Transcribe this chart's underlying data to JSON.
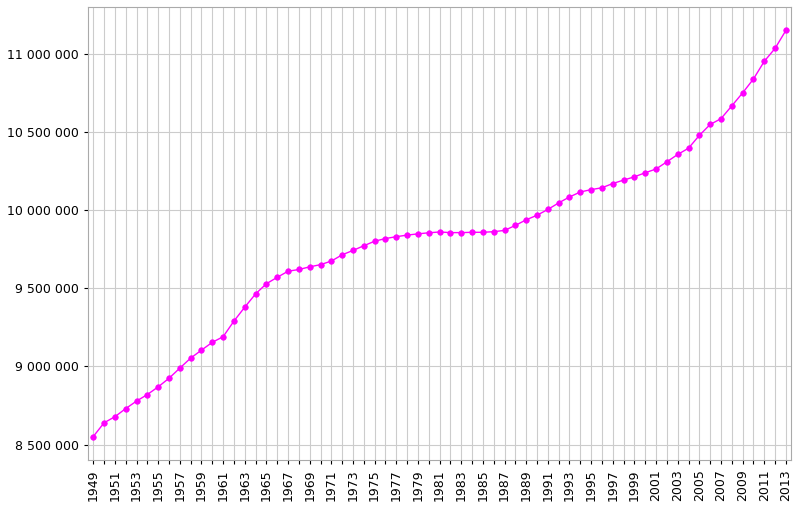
{
  "years": [
    1949,
    1950,
    1951,
    1952,
    1953,
    1954,
    1955,
    1956,
    1957,
    1958,
    1959,
    1960,
    1961,
    1962,
    1963,
    1964,
    1965,
    1966,
    1967,
    1968,
    1969,
    1970,
    1971,
    1972,
    1973,
    1974,
    1975,
    1976,
    1977,
    1978,
    1979,
    1980,
    1981,
    1982,
    1983,
    1984,
    1985,
    1986,
    1987,
    1988,
    1989,
    1990,
    1991,
    1992,
    1993,
    1994,
    1995,
    1996,
    1997,
    1998,
    1999,
    2000,
    2001,
    2002,
    2003,
    2004,
    2005,
    2006,
    2007,
    2008,
    2009,
    2010,
    2011,
    2012,
    2013
  ],
  "population": [
    8551000,
    8639000,
    8678000,
    8730000,
    8778000,
    8820000,
    8869000,
    8924000,
    8989000,
    9053000,
    9104000,
    9154000,
    9190000,
    9290000,
    9379000,
    9464000,
    9529000,
    9570000,
    9609000,
    9620000,
    9637000,
    9651000,
    9674000,
    9714000,
    9742000,
    9772000,
    9801000,
    9818000,
    9830000,
    9840000,
    9848000,
    9855000,
    9860000,
    9856000,
    9856000,
    9858000,
    9858000,
    9862000,
    9870000,
    9902000,
    9938000,
    9967000,
    10004000,
    10046000,
    10084000,
    10116000,
    10131000,
    10143000,
    10170000,
    10192000,
    10213000,
    10239000,
    10263000,
    10309000,
    10356000,
    10396000,
    10478000,
    10548000,
    10585000,
    10667000,
    10750000,
    10839000,
    10952000,
    11035000,
    11150000
  ],
  "line_color": "#ff00ff",
  "marker_color": "#ff00ff",
  "background_color": "#ffffff",
  "grid_color": "#cccccc",
  "ylim_min": 8400000,
  "ylim_max": 11300000,
  "tick_label_fontsize": 9,
  "marker_size": 4
}
